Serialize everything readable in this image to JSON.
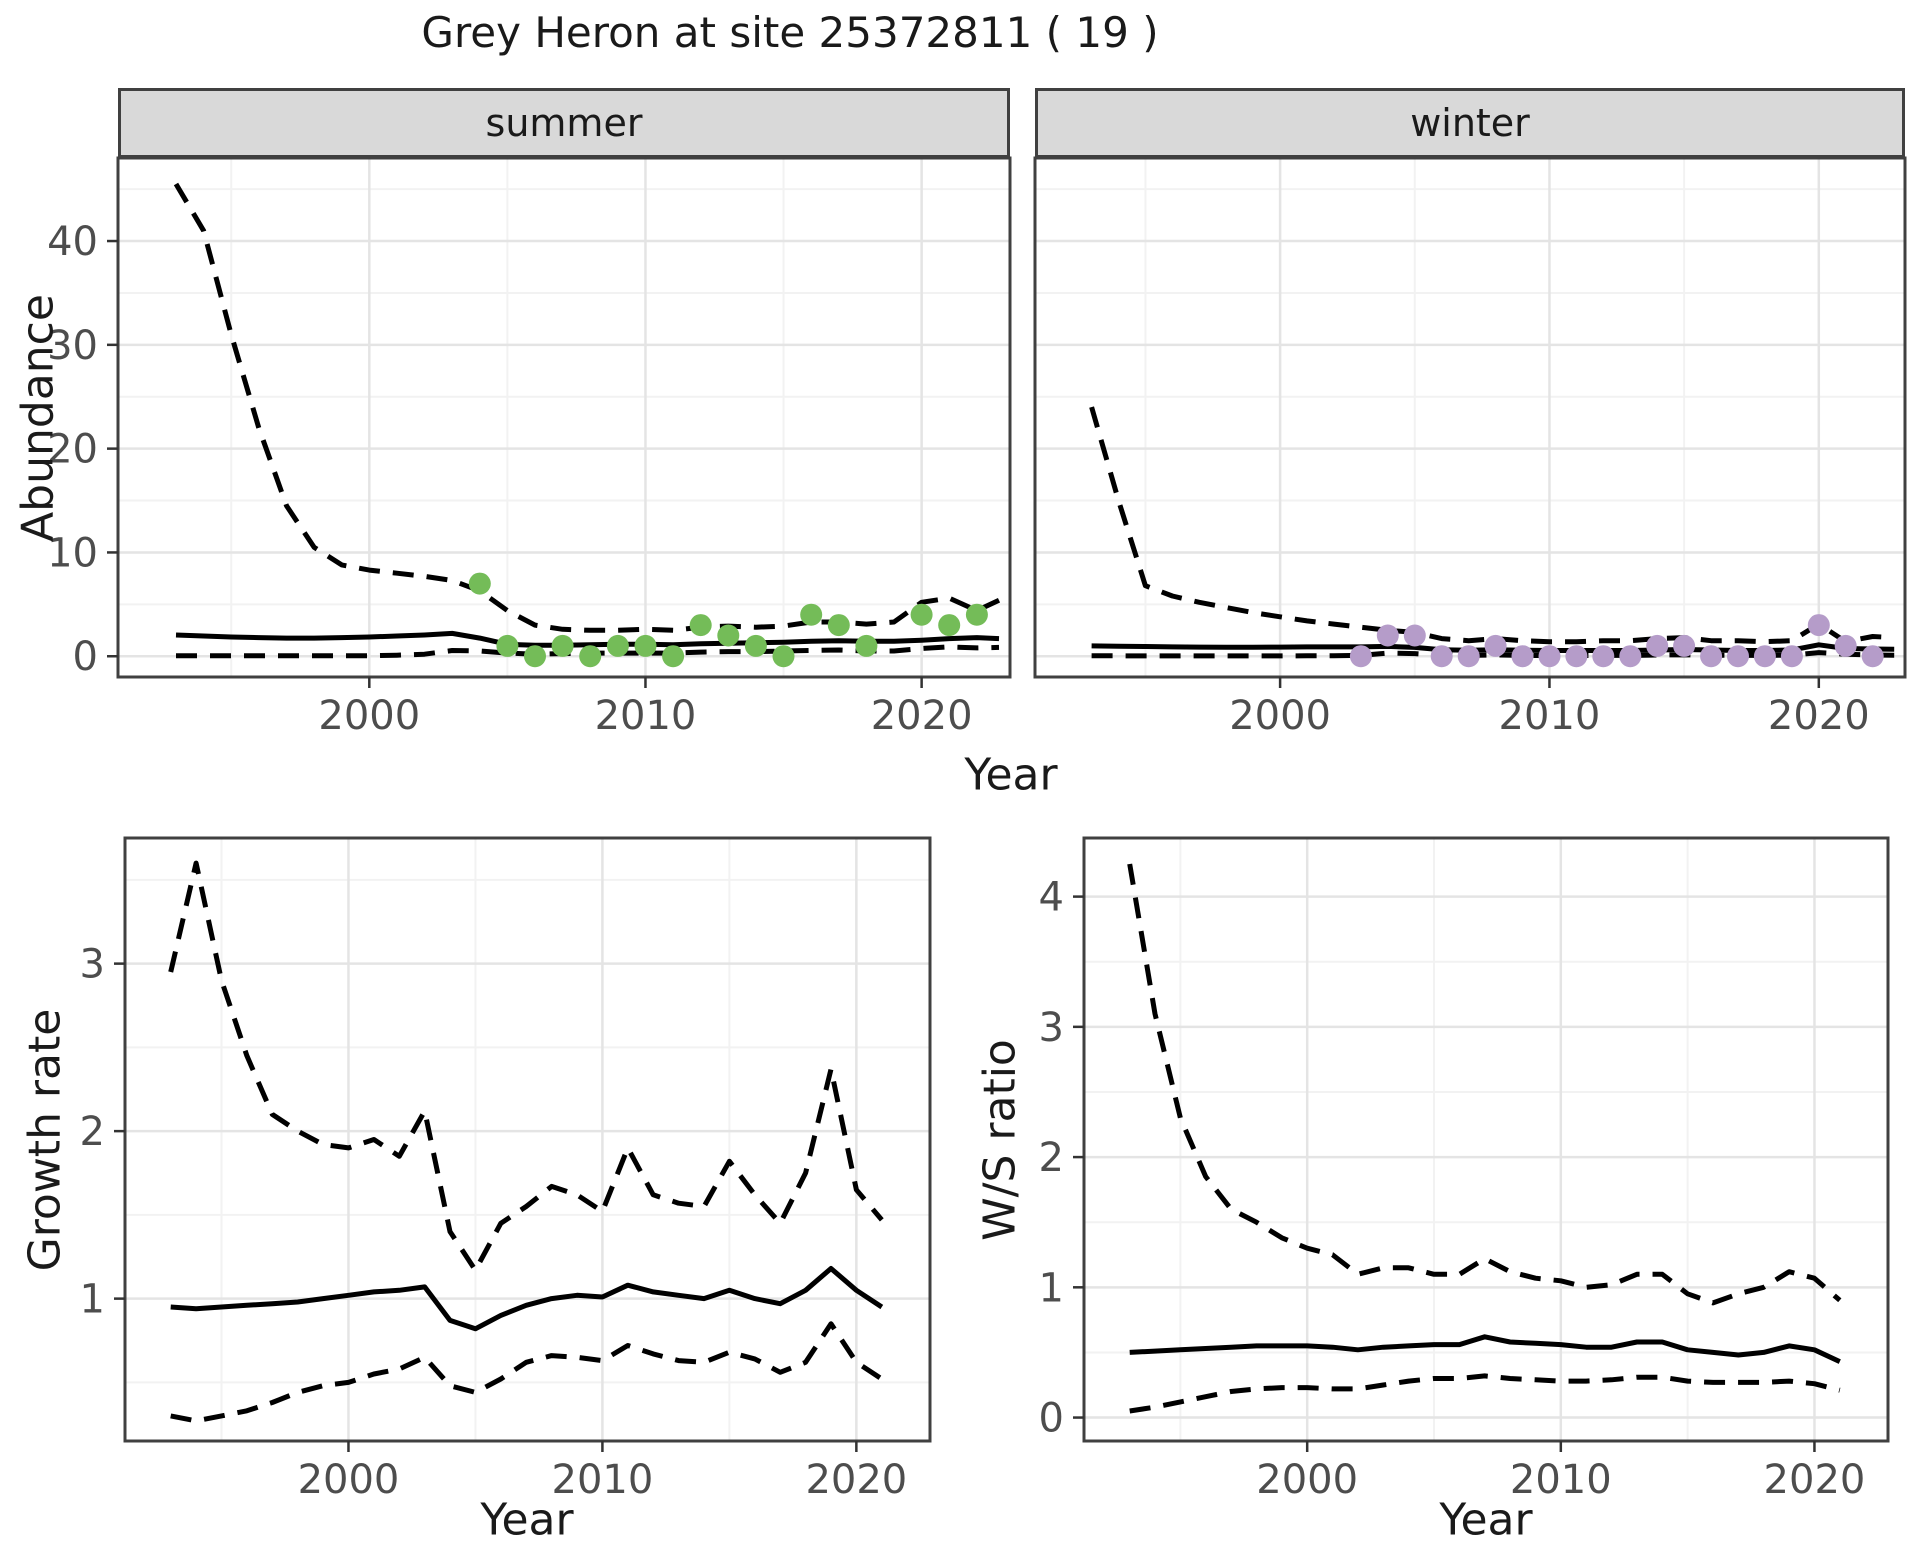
{
  "title": "Grey Heron at site 25372811 ( 19 )",
  "facets": {
    "summer": "summer",
    "winter": "winter"
  },
  "axis_labels": {
    "abundance": "Abundance",
    "year": "Year",
    "growth": "Growth rate",
    "ws": "W/S ratio"
  },
  "colors": {
    "summer_point": "#74BC58",
    "winter_point": "#B59CC9",
    "line": "#000000",
    "strip_bg": "#D9D9D9",
    "panel_border": "#404040",
    "grid_major": "#E4E4E4",
    "grid_minor": "#F2F2F2",
    "tick_text": "#4D4D4D"
  },
  "chart_data": [
    {
      "id": "abundance-summer",
      "type": "line",
      "facet_label": "summer",
      "xlabel": "Year",
      "ylabel": "Abundance",
      "xlim": [
        1990.9,
        2023.2
      ],
      "ylim": [
        -2,
        48
      ],
      "xticks": [
        2000,
        2010,
        2020
      ],
      "xminor": [
        1995,
        2005,
        2015
      ],
      "yticks": [
        0,
        10,
        20,
        30,
        40
      ],
      "yminor": [
        5,
        15,
        25,
        35,
        45
      ],
      "grid": true,
      "legend": "none",
      "series": [
        {
          "name": "upper_ci",
          "style": "dashed",
          "x": [
            1993,
            1994,
            1995,
            1996,
            1997,
            1998,
            1999,
            2000,
            2001,
            2002,
            2003,
            2004,
            2005,
            2006,
            2007,
            2008,
            2009,
            2010,
            2011,
            2012,
            2013,
            2014,
            2015,
            2016,
            2017,
            2018,
            2019,
            2020,
            2021,
            2022,
            2022.8
          ],
          "y": [
            45.5,
            41,
            31,
            22,
            14.5,
            10.5,
            8.8,
            8.3,
            8.0,
            7.7,
            7.3,
            6.3,
            4.4,
            3.0,
            2.6,
            2.5,
            2.5,
            2.6,
            2.5,
            2.8,
            2.9,
            2.8,
            2.9,
            3.3,
            3.3,
            3.1,
            3.3,
            5.2,
            5.6,
            4.4,
            5.4
          ]
        },
        {
          "name": "trend",
          "style": "solid",
          "x": [
            1993,
            1994,
            1995,
            1996,
            1997,
            1998,
            1999,
            2000,
            2001,
            2002,
            2003,
            2004,
            2005,
            2006,
            2007,
            2008,
            2009,
            2010,
            2011,
            2012,
            2013,
            2014,
            2015,
            2016,
            2017,
            2018,
            2019,
            2020,
            2021,
            2022,
            2022.8
          ],
          "y": [
            2.05,
            1.95,
            1.85,
            1.8,
            1.75,
            1.75,
            1.8,
            1.85,
            1.95,
            2.05,
            2.2,
            1.75,
            1.15,
            1.05,
            1.05,
            1.1,
            1.15,
            1.15,
            1.1,
            1.2,
            1.25,
            1.3,
            1.35,
            1.45,
            1.5,
            1.45,
            1.45,
            1.55,
            1.7,
            1.8,
            1.7
          ]
        },
        {
          "name": "lower_ci",
          "style": "dashed",
          "x": [
            1993,
            1994,
            1995,
            1996,
            1997,
            1998,
            1999,
            2000,
            2001,
            2002,
            2003,
            2004,
            2005,
            2006,
            2007,
            2008,
            2009,
            2010,
            2011,
            2012,
            2013,
            2014,
            2015,
            2016,
            2017,
            2018,
            2019,
            2020,
            2021,
            2022,
            2022.8
          ],
          "y": [
            0.05,
            0.05,
            0.05,
            0.05,
            0.05,
            0.05,
            0.05,
            0.05,
            0.1,
            0.2,
            0.55,
            0.5,
            0.3,
            0.2,
            0.25,
            0.3,
            0.3,
            0.3,
            0.3,
            0.4,
            0.45,
            0.45,
            0.5,
            0.55,
            0.6,
            0.5,
            0.5,
            0.75,
            0.9,
            0.8,
            0.85
          ]
        }
      ],
      "points": {
        "name": "observed_summer",
        "color": "#74BC58",
        "x": [
          2004,
          2005,
          2006,
          2007,
          2008,
          2009,
          2010,
          2011,
          2012,
          2013,
          2014,
          2015,
          2016,
          2017,
          2018,
          2020,
          2021,
          2022
        ],
        "y": [
          7,
          1,
          0,
          1,
          0,
          1,
          1,
          0,
          3,
          2,
          1,
          0,
          4,
          3,
          1,
          4,
          3,
          4
        ]
      }
    },
    {
      "id": "abundance-winter",
      "type": "line",
      "facet_label": "winter",
      "xlabel": "Year",
      "ylabel": "Abundance",
      "xlim": [
        1990.9,
        2023.2
      ],
      "ylim": [
        -2,
        48
      ],
      "xticks": [
        2000,
        2010,
        2020
      ],
      "xminor": [
        1995,
        2005,
        2015
      ],
      "yticks": [
        0,
        10,
        20,
        30,
        40
      ],
      "yminor": [
        5,
        15,
        25,
        35,
        45
      ],
      "grid": true,
      "legend": "none",
      "series": [
        {
          "name": "upper_ci",
          "style": "dashed",
          "x": [
            1993,
            1994,
            1995,
            1996,
            1997,
            1998,
            1999,
            2000,
            2001,
            2002,
            2003,
            2004,
            2005,
            2006,
            2007,
            2008,
            2009,
            2010,
            2011,
            2012,
            2013,
            2014,
            2015,
            2016,
            2017,
            2018,
            2019,
            2020,
            2021,
            2022,
            2022.8
          ],
          "y": [
            24,
            15,
            6.8,
            5.8,
            5.2,
            4.7,
            4.2,
            3.8,
            3.4,
            3.1,
            2.8,
            2.5,
            2.3,
            1.7,
            1.5,
            1.7,
            1.5,
            1.4,
            1.4,
            1.5,
            1.5,
            1.7,
            1.8,
            1.5,
            1.5,
            1.4,
            1.5,
            3.1,
            1.4,
            1.9,
            1.8
          ]
        },
        {
          "name": "trend",
          "style": "solid",
          "x": [
            1993,
            1994,
            1995,
            1996,
            1997,
            1998,
            1999,
            2000,
            2001,
            2002,
            2003,
            2004,
            2005,
            2006,
            2007,
            2008,
            2009,
            2010,
            2011,
            2012,
            2013,
            2014,
            2015,
            2016,
            2017,
            2018,
            2019,
            2020,
            2021,
            2022,
            2022.8
          ],
          "y": [
            1.0,
            0.97,
            0.94,
            0.9,
            0.88,
            0.87,
            0.87,
            0.88,
            0.9,
            0.9,
            0.9,
            0.95,
            0.85,
            0.62,
            0.58,
            0.62,
            0.57,
            0.55,
            0.55,
            0.55,
            0.55,
            0.6,
            0.65,
            0.6,
            0.55,
            0.55,
            0.6,
            1.1,
            0.75,
            0.7,
            0.68
          ]
        },
        {
          "name": "lower_ci",
          "style": "dashed",
          "x": [
            1993,
            1994,
            1995,
            1996,
            1997,
            1998,
            1999,
            2000,
            2001,
            2002,
            2003,
            2004,
            2005,
            2006,
            2007,
            2008,
            2009,
            2010,
            2011,
            2012,
            2013,
            2014,
            2015,
            2016,
            2017,
            2018,
            2019,
            2020,
            2021,
            2022,
            2022.8
          ],
          "y": [
            0.05,
            0.04,
            0.03,
            0.03,
            0.03,
            0.03,
            0.03,
            0.03,
            0.04,
            0.05,
            0.08,
            0.3,
            0.25,
            0.1,
            0.08,
            0.12,
            0.08,
            0.07,
            0.07,
            0.08,
            0.08,
            0.12,
            0.15,
            0.1,
            0.08,
            0.08,
            0.1,
            0.35,
            0.2,
            0.12,
            0.1
          ]
        }
      ],
      "points": {
        "name": "observed_winter",
        "color": "#B59CC9",
        "x": [
          2003,
          2004,
          2005,
          2006,
          2007,
          2008,
          2009,
          2010,
          2011,
          2012,
          2013,
          2014,
          2015,
          2016,
          2017,
          2018,
          2019,
          2020,
          2021,
          2022
        ],
        "y": [
          0,
          2,
          2,
          0,
          0,
          1,
          0,
          0,
          0,
          0,
          0,
          1,
          1,
          0,
          0,
          0,
          0,
          3,
          1,
          0
        ]
      }
    },
    {
      "id": "growth-rate",
      "type": "line",
      "facet_label": null,
      "xlabel": "Year",
      "ylabel": "Growth rate",
      "xlim": [
        1991.2,
        2022.9
      ],
      "ylim": [
        0.15,
        3.75
      ],
      "xticks": [
        2000,
        2010,
        2020
      ],
      "xminor": [
        1995,
        2005,
        2015
      ],
      "yticks": [
        1,
        2,
        3
      ],
      "yminor": [
        0.5,
        1.5,
        2.5,
        3.5
      ],
      "grid": true,
      "legend": "none",
      "series": [
        {
          "name": "upper_ci",
          "style": "dashed",
          "x": [
            1993,
            1994,
            1995,
            1996,
            1997,
            1998,
            1999,
            2000,
            2001,
            2002,
            2003,
            2004,
            2005,
            2006,
            2007,
            2008,
            2009,
            2010,
            2011,
            2012,
            2013,
            2014,
            2015,
            2016,
            2017,
            2018,
            2019,
            2020,
            2021
          ],
          "y": [
            2.95,
            3.6,
            2.9,
            2.45,
            2.1,
            2.0,
            1.92,
            1.9,
            1.95,
            1.85,
            2.12,
            1.4,
            1.17,
            1.45,
            1.55,
            1.67,
            1.62,
            1.52,
            1.9,
            1.62,
            1.57,
            1.55,
            1.82,
            1.62,
            1.45,
            1.75,
            2.37,
            1.65,
            1.47
          ]
        },
        {
          "name": "trend",
          "style": "solid",
          "x": [
            1993,
            1994,
            1995,
            1996,
            1997,
            1998,
            1999,
            2000,
            2001,
            2002,
            2003,
            2004,
            2005,
            2006,
            2007,
            2008,
            2009,
            2010,
            2011,
            2012,
            2013,
            2014,
            2015,
            2016,
            2017,
            2018,
            2019,
            2020,
            2021
          ],
          "y": [
            0.95,
            0.94,
            0.95,
            0.96,
            0.97,
            0.98,
            1.0,
            1.02,
            1.04,
            1.05,
            1.07,
            0.87,
            0.82,
            0.9,
            0.96,
            1.0,
            1.02,
            1.01,
            1.08,
            1.04,
            1.02,
            1.0,
            1.05,
            1.0,
            0.97,
            1.05,
            1.18,
            1.05,
            0.95
          ]
        },
        {
          "name": "lower_ci",
          "style": "dashed",
          "x": [
            1993,
            1994,
            1995,
            1996,
            1997,
            1998,
            1999,
            2000,
            2001,
            2002,
            2003,
            2004,
            2005,
            2006,
            2007,
            2008,
            2009,
            2010,
            2011,
            2012,
            2013,
            2014,
            2015,
            2016,
            2017,
            2018,
            2019,
            2020,
            2021
          ],
          "y": [
            0.3,
            0.27,
            0.3,
            0.33,
            0.38,
            0.44,
            0.48,
            0.5,
            0.55,
            0.58,
            0.65,
            0.48,
            0.44,
            0.52,
            0.62,
            0.66,
            0.65,
            0.63,
            0.72,
            0.67,
            0.63,
            0.62,
            0.68,
            0.64,
            0.56,
            0.62,
            0.85,
            0.62,
            0.52
          ]
        }
      ],
      "points": null
    },
    {
      "id": "ws-ratio",
      "type": "line",
      "facet_label": null,
      "xlabel": "Year",
      "ylabel": "W/S ratio",
      "xlim": [
        1991.2,
        2022.9
      ],
      "ylim": [
        -0.18,
        4.45
      ],
      "xticks": [
        2000,
        2010,
        2020
      ],
      "xminor": [
        1995,
        2005,
        2015
      ],
      "yticks": [
        0,
        1,
        2,
        3,
        4
      ],
      "yminor": [
        0.5,
        1.5,
        2.5,
        3.5
      ],
      "grid": true,
      "legend": "none",
      "series": [
        {
          "name": "upper_ci",
          "style": "dashed",
          "x": [
            1993,
            1994,
            1995,
            1996,
            1997,
            1998,
            1999,
            2000,
            2001,
            2002,
            2003,
            2004,
            2005,
            2006,
            2007,
            2008,
            2009,
            2010,
            2011,
            2012,
            2013,
            2014,
            2015,
            2016,
            2017,
            2018,
            2019,
            2020,
            2021
          ],
          "y": [
            4.25,
            3.1,
            2.3,
            1.85,
            1.6,
            1.5,
            1.38,
            1.3,
            1.25,
            1.1,
            1.15,
            1.15,
            1.1,
            1.1,
            1.22,
            1.12,
            1.07,
            1.05,
            1.0,
            1.02,
            1.1,
            1.1,
            0.95,
            0.88,
            0.95,
            1.0,
            1.12,
            1.07,
            0.9
          ]
        },
        {
          "name": "trend",
          "style": "solid",
          "x": [
            1993,
            1994,
            1995,
            1996,
            1997,
            1998,
            1999,
            2000,
            2001,
            2002,
            2003,
            2004,
            2005,
            2006,
            2007,
            2008,
            2009,
            2010,
            2011,
            2012,
            2013,
            2014,
            2015,
            2016,
            2017,
            2018,
            2019,
            2020,
            2021
          ],
          "y": [
            0.5,
            0.51,
            0.52,
            0.53,
            0.54,
            0.55,
            0.55,
            0.55,
            0.54,
            0.52,
            0.54,
            0.55,
            0.56,
            0.56,
            0.62,
            0.58,
            0.57,
            0.56,
            0.54,
            0.54,
            0.58,
            0.58,
            0.52,
            0.5,
            0.48,
            0.5,
            0.55,
            0.52,
            0.43
          ]
        },
        {
          "name": "lower_ci",
          "style": "dashed",
          "x": [
            1993,
            1994,
            1995,
            1996,
            1997,
            1998,
            1999,
            2000,
            2001,
            2002,
            2003,
            2004,
            2005,
            2006,
            2007,
            2008,
            2009,
            2010,
            2011,
            2012,
            2013,
            2014,
            2015,
            2016,
            2017,
            2018,
            2019,
            2020,
            2021
          ],
          "y": [
            0.05,
            0.08,
            0.12,
            0.16,
            0.2,
            0.22,
            0.23,
            0.23,
            0.22,
            0.22,
            0.25,
            0.28,
            0.3,
            0.3,
            0.32,
            0.3,
            0.29,
            0.28,
            0.28,
            0.29,
            0.31,
            0.31,
            0.28,
            0.27,
            0.27,
            0.27,
            0.28,
            0.26,
            0.21
          ]
        }
      ],
      "points": null
    }
  ]
}
